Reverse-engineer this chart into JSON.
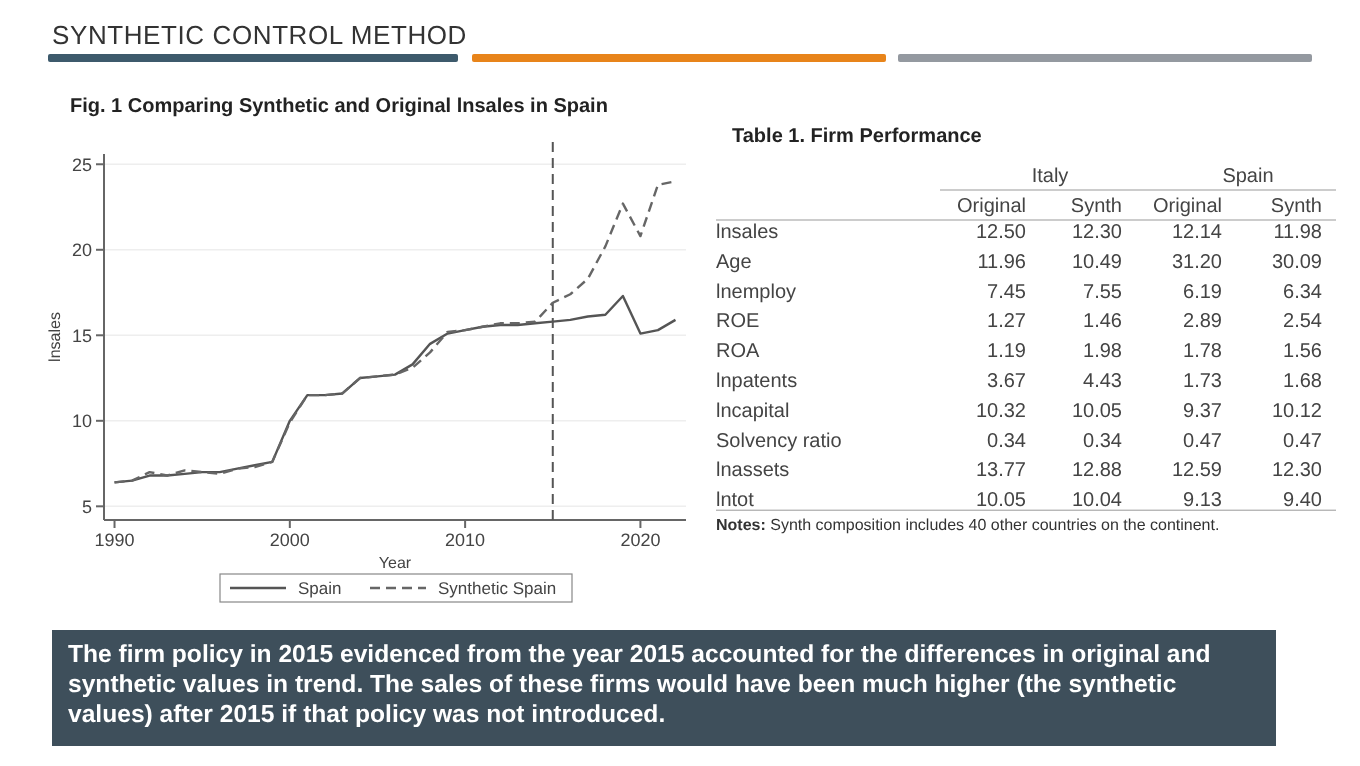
{
  "chart_data": [
    {
      "type": "other",
      "title": "SYNTHETIC CONTROL METHOD",
      "annotations": [
        "The firm policy in 2015 evidenced from the year 2015 accounted for the differences in original and synthetic values in trend.  The sales of these firms would have been much higher (the synthetic values) after 2015 if that policy was not introduced."
      ]
    },
    {
      "type": "line",
      "title": "Fig. 1 Comparing Synthetic and Original lnsales in Spain",
      "xlabel": "Year",
      "ylabel": "lnsales",
      "x": [
        1990,
        1991,
        1992,
        1993,
        1994,
        1995,
        1996,
        1997,
        1998,
        1999,
        2000,
        2001,
        2002,
        2003,
        2004,
        2005,
        2006,
        2007,
        2008,
        2009,
        2010,
        2011,
        2012,
        2013,
        2014,
        2015,
        2016,
        2017,
        2018,
        2019,
        2020,
        2021,
        2022
      ],
      "series": [
        {
          "name": "Spain",
          "color": "#555555",
          "line_style": "solid",
          "values": [
            6.4,
            6.5,
            6.8,
            6.8,
            6.9,
            7.0,
            7.0,
            7.2,
            7.4,
            7.6,
            10.0,
            11.5,
            11.5,
            11.6,
            12.5,
            12.6,
            12.7,
            13.3,
            14.5,
            15.1,
            15.3,
            15.5,
            15.6,
            15.6,
            15.7,
            15.8,
            15.9,
            16.1,
            16.2,
            17.3,
            15.1,
            15.3,
            15.9
          ]
        },
        {
          "name": "Synthetic Spain",
          "color": "#666666",
          "line_style": "dashed",
          "values": [
            6.4,
            6.5,
            7.0,
            6.8,
            7.1,
            7.0,
            6.9,
            7.2,
            7.3,
            7.6,
            9.9,
            11.5,
            11.5,
            11.6,
            12.5,
            12.6,
            12.7,
            13.1,
            14.0,
            15.2,
            15.3,
            15.5,
            15.7,
            15.7,
            15.8,
            16.9,
            17.4,
            18.3,
            20.2,
            22.7,
            20.8,
            23.8,
            24.0
          ]
        }
      ],
      "xlim": [
        1989.4,
        2022.6
      ],
      "ylim": [
        4.2,
        25.6
      ],
      "xticks": [
        1990,
        2000,
        2010,
        2020
      ],
      "yticks": [
        5,
        10,
        15,
        20,
        25
      ],
      "grid": "y",
      "legend": "bottom",
      "ref_lines": [
        {
          "axis": "x",
          "value": 2015,
          "color": "#555555",
          "line_style": "dashed"
        }
      ]
    },
    {
      "type": "other",
      "title": "Table 1.  Firm Performance",
      "legend_title": [
        "Italy",
        "Spain"
      ],
      "categories": [
        "Original",
        "Synth",
        "Original",
        "Synth"
      ],
      "y_categories": [
        "lnsales",
        "Age",
        "lnemploy",
        "ROE",
        "ROA",
        "lnpatents",
        "lncapital",
        "Solvency ratio",
        "lnassets",
        "lntot"
      ],
      "cell_labels": [
        [
          "12.50",
          "12.30",
          "12.14",
          "11.98"
        ],
        [
          "11.96",
          "10.49",
          "31.20",
          "30.09"
        ],
        [
          "7.45",
          "7.55",
          "6.19",
          "6.34"
        ],
        [
          "1.27",
          "1.46",
          "2.89",
          "2.54"
        ],
        [
          "1.19",
          "1.98",
          "1.78",
          "1.56"
        ],
        [
          "3.67",
          "4.43",
          "1.73",
          "1.68"
        ],
        [
          "10.32",
          "10.05",
          "9.37",
          "10.12"
        ],
        [
          "0.34",
          "0.34",
          "0.47",
          "0.47"
        ],
        [
          "13.77",
          "12.88",
          "12.59",
          "12.30"
        ],
        [
          "10.05",
          "10.04",
          "9.13",
          "9.40"
        ]
      ],
      "annotations": [
        "Notes: Synth composition includes 40 other countries on the continent."
      ]
    }
  ]
}
